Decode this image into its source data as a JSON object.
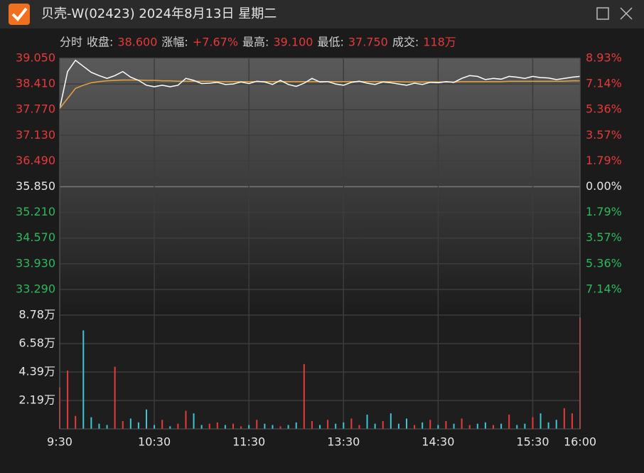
{
  "window": {
    "title": "贝壳-W(02423) 2024年8月13日 星期二"
  },
  "info": {
    "mode": "分时",
    "items": [
      {
        "label": "收盘:",
        "value": "38.600"
      },
      {
        "label": "涨幅:",
        "value": "+7.67%"
      },
      {
        "label": "最高:",
        "value": "39.100"
      },
      {
        "label": "最低:",
        "value": "37.750"
      },
      {
        "label": "成交:",
        "value": "118万"
      }
    ]
  },
  "chart_data": [
    {
      "type": "line",
      "x": [
        "9:30",
        "9:35",
        "9:40",
        "9:45",
        "9:50",
        "9:55",
        "10:00",
        "10:05",
        "10:10",
        "10:15",
        "10:20",
        "10:25",
        "10:30",
        "10:35",
        "10:40",
        "10:45",
        "10:50",
        "10:55",
        "11:00",
        "11:05",
        "11:10",
        "11:15",
        "11:20",
        "11:25",
        "11:30",
        "11:35",
        "11:40",
        "11:45",
        "11:50",
        "11:55",
        "12:00",
        "13:05",
        "13:10",
        "13:15",
        "13:20",
        "13:25",
        "13:30",
        "13:35",
        "13:40",
        "13:45",
        "13:50",
        "13:55",
        "14:00",
        "14:05",
        "14:10",
        "14:15",
        "14:20",
        "14:25",
        "14:30",
        "14:35",
        "14:40",
        "14:45",
        "14:50",
        "14:55",
        "15:00",
        "15:05",
        "15:10",
        "15:15",
        "15:20",
        "15:25",
        "15:30",
        "15:35",
        "15:40",
        "15:45",
        "15:50",
        "15:55",
        "16:00"
      ],
      "series": [
        {
          "color": "#ffffff",
          "values": [
            37.8,
            38.72,
            39.0,
            38.85,
            38.7,
            38.62,
            38.55,
            38.62,
            38.72,
            38.58,
            38.5,
            38.38,
            38.34,
            38.38,
            38.34,
            38.38,
            38.55,
            38.5,
            38.42,
            38.43,
            38.45,
            38.4,
            38.41,
            38.46,
            38.42,
            38.48,
            38.46,
            38.4,
            38.5,
            38.4,
            38.35,
            38.43,
            38.55,
            38.46,
            38.47,
            38.41,
            38.38,
            38.45,
            38.48,
            38.43,
            38.4,
            38.46,
            38.44,
            38.41,
            38.38,
            38.43,
            38.4,
            38.45,
            38.44,
            38.47,
            38.45,
            38.55,
            38.62,
            38.6,
            38.52,
            38.55,
            38.53,
            38.6,
            38.58,
            38.55,
            38.6,
            38.57,
            38.56,
            38.52,
            38.55,
            38.58,
            38.6
          ]
        },
        {
          "color": "#e8a33b",
          "values": [
            37.8,
            38.05,
            38.3,
            38.38,
            38.44,
            38.47,
            38.49,
            38.5,
            38.51,
            38.51,
            38.51,
            38.5,
            38.5,
            38.49,
            38.49,
            38.48,
            38.48,
            38.48,
            38.48,
            38.48,
            38.47,
            38.47,
            38.47,
            38.47,
            38.47,
            38.47,
            38.47,
            38.47,
            38.47,
            38.47,
            38.47,
            38.47,
            38.47,
            38.47,
            38.47,
            38.47,
            38.47,
            38.47,
            38.47,
            38.47,
            38.47,
            38.47,
            38.47,
            38.47,
            38.46,
            38.46,
            38.46,
            38.46,
            38.46,
            38.46,
            38.46,
            38.47,
            38.47,
            38.47,
            38.47,
            38.47,
            38.47,
            38.48,
            38.48,
            38.48,
            38.48,
            38.48,
            38.48,
            38.48,
            38.48,
            38.49,
            38.49
          ]
        }
      ],
      "ylim": [
        32.65,
        39.05
      ],
      "yticks": [
        {
          "value": 39.05,
          "label": "39.050"
        },
        {
          "value": 38.41,
          "label": "38.410"
        },
        {
          "value": 37.77,
          "label": "37.770"
        },
        {
          "value": 37.13,
          "label": "37.130"
        },
        {
          "value": 36.49,
          "label": "36.490"
        },
        {
          "value": 35.85,
          "label": "35.850"
        },
        {
          "value": 35.21,
          "label": "35.210"
        },
        {
          "value": 34.57,
          "label": "34.570"
        },
        {
          "value": 33.93,
          "label": "33.930"
        },
        {
          "value": 33.29,
          "label": "33.290"
        }
      ],
      "y2lim": [
        -8.93,
        8.93
      ],
      "y2ticks": [
        {
          "value": 8.93,
          "label": "8.93%"
        },
        {
          "value": 7.14,
          "label": "7.14%"
        },
        {
          "value": 5.36,
          "label": "5.36%"
        },
        {
          "value": 3.57,
          "label": "3.57%"
        },
        {
          "value": 1.79,
          "label": "1.79%"
        },
        {
          "value": 0,
          "label": "0.00%"
        },
        {
          "value": -1.79,
          "label": "1.79%"
        },
        {
          "value": -3.57,
          "label": "3.57%"
        },
        {
          "value": -5.36,
          "label": "5.36%"
        },
        {
          "value": -7.14,
          "label": "7.14%"
        }
      ],
      "grid": true
    },
    {
      "type": "bar",
      "x": [
        "9:30",
        "9:35",
        "9:40",
        "9:45",
        "9:50",
        "9:55",
        "10:00",
        "10:05",
        "10:10",
        "10:15",
        "10:20",
        "10:25",
        "10:30",
        "10:35",
        "10:40",
        "10:45",
        "10:50",
        "10:55",
        "11:00",
        "11:05",
        "11:10",
        "11:15",
        "11:20",
        "11:25",
        "11:30",
        "11:35",
        "11:40",
        "11:45",
        "11:50",
        "11:55",
        "12:00",
        "13:05",
        "13:10",
        "13:15",
        "13:20",
        "13:25",
        "13:30",
        "13:35",
        "13:40",
        "13:45",
        "13:50",
        "13:55",
        "14:00",
        "14:05",
        "14:10",
        "14:15",
        "14:20",
        "14:25",
        "14:30",
        "14:35",
        "14:40",
        "14:45",
        "14:50",
        "14:55",
        "15:00",
        "15:05",
        "15:10",
        "15:15",
        "15:20",
        "15:25",
        "15:30",
        "15:35",
        "15:40",
        "15:45",
        "15:50",
        "15:55",
        "16:00"
      ],
      "values": [
        3.2,
        4.5,
        1.0,
        7.6,
        0.9,
        0.4,
        0.3,
        4.8,
        0.6,
        0.8,
        0.5,
        1.5,
        0.3,
        0.7,
        0.2,
        0.4,
        1.4,
        1.2,
        0.3,
        0.4,
        0.5,
        0.3,
        0.4,
        0.2,
        0.3,
        0.7,
        0.4,
        0.3,
        0.2,
        0.3,
        0.5,
        5.0,
        0.6,
        0.3,
        0.7,
        0.4,
        0.5,
        0.8,
        0.3,
        1.1,
        0.4,
        0.6,
        1.2,
        0.4,
        0.8,
        0.3,
        0.5,
        0.7,
        0.3,
        0.6,
        0.4,
        0.8,
        0.3,
        0.4,
        0.5,
        0.3,
        0.4,
        1.1,
        0.3,
        0.4,
        0.9,
        1.2,
        0.5,
        0.7,
        1.6,
        1.2,
        8.6
      ],
      "up_color": "#e63a3a",
      "down_color": "#3ec6d6",
      "ylim": [
        0,
        8.78
      ],
      "yticks": [
        {
          "value": 8.78,
          "label": "8.78万"
        },
        {
          "value": 6.58,
          "label": "6.58万"
        },
        {
          "value": 4.39,
          "label": "4.39万"
        },
        {
          "value": 2.19,
          "label": "2.19万"
        }
      ],
      "xticks": [
        "9:30",
        "10:30",
        "11:30",
        "13:30",
        "14:30",
        "15:30",
        "16:00"
      ],
      "grid": true
    }
  ]
}
